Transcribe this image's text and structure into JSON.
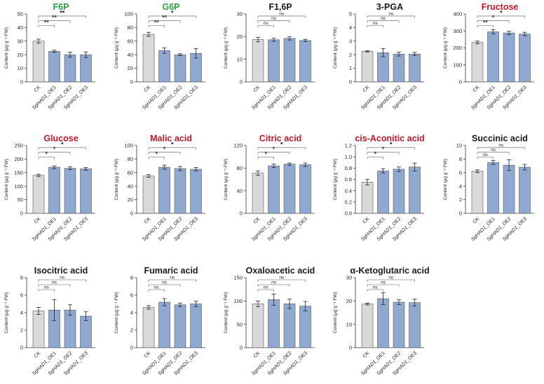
{
  "figure": {
    "categories": [
      "CK",
      "SgHAD1_OE1",
      "SgHAD1_OE2",
      "SgHAD1_OE3"
    ],
    "ylabel": "Content (μg g⁻¹ FW)",
    "colors": {
      "ck": "#d9d9d9",
      "oe": "#8fa9d0",
      "title_green": "#27a243",
      "title_red": "#c0182a",
      "title_black": "#1a1a1a"
    }
  },
  "chart_data": [
    {
      "type": "bar",
      "title": "F6P",
      "title_color": "#27a243",
      "ylim": [
        0,
        50
      ],
      "yticks": [
        0,
        10,
        20,
        30,
        40,
        50
      ],
      "categories": [
        "CK",
        "SgHAD1_OE1",
        "SgHAD1_OE2",
        "SgHAD1_OE3"
      ],
      "values": [
        30,
        22.5,
        20,
        20
      ],
      "errors": [
        1.5,
        0.8,
        1.8,
        2
      ],
      "annotations": [
        {
          "from": 0,
          "to": 1,
          "label": "**"
        },
        {
          "from": 0,
          "to": 2,
          "label": "**"
        },
        {
          "from": 0,
          "to": 3,
          "label": "**"
        }
      ]
    },
    {
      "type": "bar",
      "title": "G6P",
      "title_color": "#27a243",
      "ylim": [
        0,
        100
      ],
      "yticks": [
        0,
        20,
        40,
        60,
        80,
        100
      ],
      "categories": [
        "CK",
        "SgHAD1_OE1",
        "SgHAD1_OE2",
        "SgHAD1_OE3"
      ],
      "values": [
        70,
        46,
        40,
        42
      ],
      "errors": [
        3,
        4,
        1.5,
        7
      ],
      "annotations": [
        {
          "from": 0,
          "to": 1,
          "label": "**"
        },
        {
          "from": 0,
          "to": 2,
          "label": "**"
        },
        {
          "from": 0,
          "to": 3,
          "label": "*"
        }
      ]
    },
    {
      "type": "bar",
      "title": "F1,6P",
      "title_color": "#1a1a1a",
      "ylim": [
        0,
        30
      ],
      "yticks": [
        0,
        10,
        20,
        30
      ],
      "categories": [
        "CK",
        "SgHAD1_OE1",
        "SgHAD1_OE2",
        "SgHAD1_OE3"
      ],
      "values": [
        18.7,
        18.6,
        19.2,
        18.3
      ],
      "errors": [
        1,
        0.7,
        0.7,
        0.5
      ],
      "annotations": [
        {
          "from": 0,
          "to": 1,
          "label": "ns"
        },
        {
          "from": 0,
          "to": 2,
          "label": "ns"
        },
        {
          "from": 0,
          "to": 3,
          "label": "ns"
        }
      ]
    },
    {
      "type": "bar",
      "title": "3-PGA",
      "title_color": "#1a1a1a",
      "ylim": [
        0,
        5
      ],
      "yticks": [
        0,
        1,
        2,
        3,
        4,
        5
      ],
      "categories": [
        "CK",
        "SgHAD1_OE1",
        "SgHAD1_OE2",
        "SgHAD1_OE3"
      ],
      "values": [
        2.25,
        2.15,
        2.05,
        2.05
      ],
      "errors": [
        0.05,
        0.3,
        0.15,
        0.12
      ],
      "annotations": [
        {
          "from": 0,
          "to": 1,
          "label": "ns"
        },
        {
          "from": 0,
          "to": 2,
          "label": "ns"
        },
        {
          "from": 0,
          "to": 3,
          "label": "ns"
        }
      ]
    },
    {
      "type": "bar",
      "title": "Fructose",
      "title_color": "#c0182a",
      "ylim": [
        0,
        400
      ],
      "yticks": [
        0,
        100,
        200,
        300,
        400
      ],
      "categories": [
        "CK",
        "SgHAD1_OE1",
        "SgHAD1_OE2",
        "SgHAD1_OE3"
      ],
      "values": [
        232,
        295,
        288,
        282
      ],
      "errors": [
        8,
        12,
        10,
        10
      ],
      "annotations": [
        {
          "from": 0,
          "to": 1,
          "label": "**"
        },
        {
          "from": 0,
          "to": 2,
          "label": "*"
        },
        {
          "from": 0,
          "to": 3,
          "label": "*"
        }
      ]
    },
    {
      "type": "bar",
      "title": "Glucose",
      "title_color": "#c0182a",
      "ylim": [
        0,
        250
      ],
      "yticks": [
        0,
        50,
        100,
        150,
        200,
        250
      ],
      "categories": [
        "CK",
        "SgHAD1_OE1",
        "SgHAD1_OE2",
        "SgHAD1_OE3"
      ],
      "values": [
        140,
        170,
        166,
        164
      ],
      "errors": [
        4,
        5,
        5,
        5
      ],
      "annotations": [
        {
          "from": 0,
          "to": 1,
          "label": "*"
        },
        {
          "from": 0,
          "to": 2,
          "label": "*"
        },
        {
          "from": 0,
          "to": 3,
          "label": "*"
        }
      ]
    },
    {
      "type": "bar",
      "title": "Malic acid",
      "title_color": "#c0182a",
      "ylim": [
        0,
        100
      ],
      "yticks": [
        0,
        20,
        40,
        60,
        80,
        100
      ],
      "categories": [
        "CK",
        "SgHAD1_OE1",
        "SgHAD1_OE2",
        "SgHAD1_OE3"
      ],
      "values": [
        55,
        68,
        66,
        65
      ],
      "errors": [
        2,
        3,
        3,
        2.5
      ],
      "annotations": [
        {
          "from": 0,
          "to": 1,
          "label": "*"
        },
        {
          "from": 0,
          "to": 2,
          "label": "*"
        },
        {
          "from": 0,
          "to": 3,
          "label": "*"
        }
      ]
    },
    {
      "type": "bar",
      "title": "Citric acid",
      "title_color": "#c0182a",
      "ylim": [
        0,
        120
      ],
      "yticks": [
        0,
        40,
        80,
        120
      ],
      "categories": [
        "CK",
        "SgHAD1_OE1",
        "SgHAD1_OE2",
        "SgHAD1_OE3"
      ],
      "values": [
        71,
        84,
        87,
        86
      ],
      "errors": [
        4,
        3,
        2,
        3
      ],
      "annotations": [
        {
          "from": 0,
          "to": 1,
          "label": "*"
        },
        {
          "from": 0,
          "to": 2,
          "label": "*"
        },
        {
          "from": 0,
          "to": 3,
          "label": "*"
        }
      ]
    },
    {
      "type": "bar",
      "title": "cis-Aconitic acid",
      "title_color": "#c0182a",
      "ylim": [
        0,
        1.2
      ],
      "yticks": [
        0,
        0.2,
        0.4,
        0.6,
        0.8,
        1.0,
        1.2
      ],
      "categories": [
        "CK",
        "SgHAD1_OE1",
        "SgHAD1_OE2",
        "SgHAD1_OE3"
      ],
      "values": [
        0.55,
        0.75,
        0.78,
        0.82
      ],
      "errors": [
        0.05,
        0.04,
        0.04,
        0.07
      ],
      "annotations": [
        {
          "from": 0,
          "to": 1,
          "label": "*"
        },
        {
          "from": 0,
          "to": 2,
          "label": "*"
        },
        {
          "from": 0,
          "to": 3,
          "label": "*"
        }
      ]
    },
    {
      "type": "bar",
      "title": "Succinic acid",
      "title_color": "#1a1a1a",
      "ylim": [
        0,
        10
      ],
      "yticks": [
        0,
        2,
        4,
        6,
        8,
        10
      ],
      "categories": [
        "CK",
        "SgHAD1_OE1",
        "SgHAD1_OE2",
        "SgHAD1_OE3"
      ],
      "values": [
        6.2,
        7.5,
        7.1,
        6.8
      ],
      "errors": [
        0.2,
        0.3,
        0.8,
        0.4
      ],
      "annotations": [
        {
          "from": 0,
          "to": 1,
          "label": "ns"
        },
        {
          "from": 0,
          "to": 2,
          "label": "ns"
        },
        {
          "from": 0,
          "to": 3,
          "label": "ns"
        }
      ]
    },
    {
      "type": "bar",
      "title": "Isocitric acid",
      "title_color": "#1a1a1a",
      "ylim": [
        0,
        8
      ],
      "yticks": [
        0,
        2,
        4,
        6,
        8
      ],
      "categories": [
        "CK",
        "SgHAD1_OE1",
        "SgHAD1_OE2",
        "SgHAD1_OE3"
      ],
      "values": [
        4.2,
        4.3,
        4.3,
        3.6
      ],
      "errors": [
        0.4,
        1.2,
        0.6,
        0.5
      ],
      "annotations": [
        {
          "from": 0,
          "to": 1,
          "label": "ns"
        },
        {
          "from": 0,
          "to": 2,
          "label": "ns"
        },
        {
          "from": 0,
          "to": 3,
          "label": "ns"
        }
      ]
    },
    {
      "type": "bar",
      "title": "Fumaric acid",
      "title_color": "#1a1a1a",
      "ylim": [
        0,
        8
      ],
      "yticks": [
        0,
        2,
        4,
        6,
        8
      ],
      "categories": [
        "CK",
        "SgHAD1_OE1",
        "SgHAD1_OE2",
        "SgHAD1_OE3"
      ],
      "values": [
        4.6,
        5.2,
        4.9,
        5.0
      ],
      "errors": [
        0.2,
        0.4,
        0.2,
        0.3
      ],
      "annotations": [
        {
          "from": 0,
          "to": 1,
          "label": "ns"
        },
        {
          "from": 0,
          "to": 2,
          "label": "ns"
        },
        {
          "from": 0,
          "to": 3,
          "label": "ns"
        }
      ]
    },
    {
      "type": "bar",
      "title": "Oxaloacetic acid",
      "title_color": "#1a1a1a",
      "ylim": [
        0,
        150
      ],
      "yticks": [
        0,
        50,
        100,
        150
      ],
      "categories": [
        "CK",
        "SgHAD1_OE1",
        "SgHAD1_OE2",
        "SgHAD1_OE3"
      ],
      "values": [
        94,
        103,
        94,
        89
      ],
      "errors": [
        6,
        12,
        10,
        10
      ],
      "annotations": [
        {
          "from": 0,
          "to": 1,
          "label": "ns"
        },
        {
          "from": 0,
          "to": 2,
          "label": "ns"
        },
        {
          "from": 0,
          "to": 3,
          "label": "ns"
        }
      ]
    },
    {
      "type": "bar",
      "title": "α-Ketoglutaric acid",
      "title_color": "#1a1a1a",
      "ylim": [
        0,
        30
      ],
      "yticks": [
        0,
        10,
        20,
        30
      ],
      "categories": [
        "CK",
        "SgHAD1_OE1",
        "SgHAD1_OE2",
        "SgHAD1_OE3"
      ],
      "values": [
        18.7,
        21,
        19.5,
        19.3
      ],
      "errors": [
        0.4,
        2.5,
        1,
        1.5
      ],
      "annotations": [
        {
          "from": 0,
          "to": 1,
          "label": "ns"
        },
        {
          "from": 0,
          "to": 2,
          "label": "ns"
        },
        {
          "from": 0,
          "to": 3,
          "label": "ns"
        }
      ]
    }
  ]
}
